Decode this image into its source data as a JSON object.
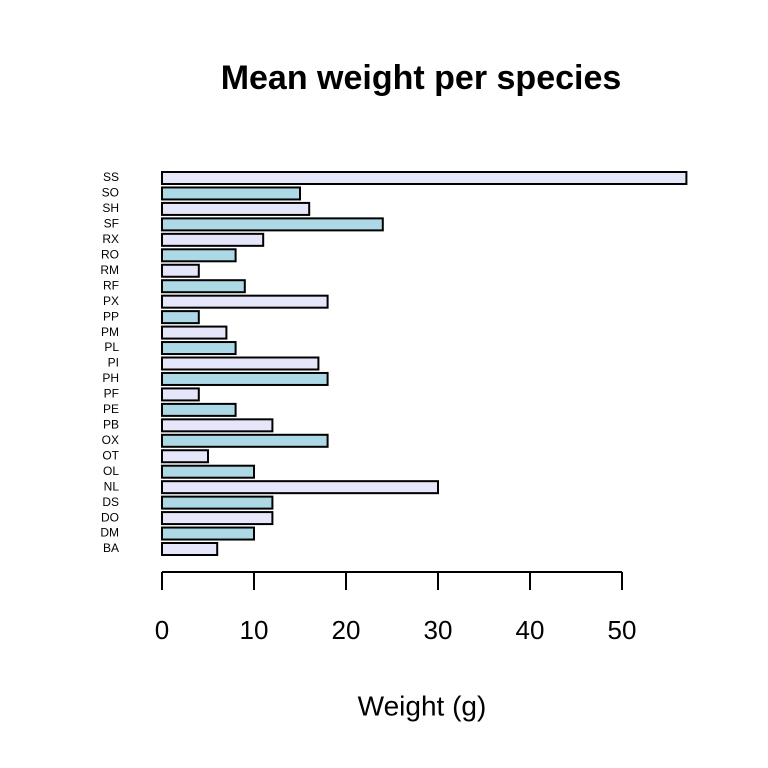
{
  "chart_data": {
    "type": "barh",
    "title": "Mean weight per species",
    "x_label": "Weight (g)",
    "categories": [
      "BA",
      "DM",
      "DO",
      "DS",
      "NL",
      "OL",
      "OT",
      "OX",
      "PB",
      "PE",
      "PF",
      "PH",
      "PI",
      "PL",
      "PM",
      "PP",
      "PX",
      "RF",
      "RM",
      "RO",
      "RX",
      "SF",
      "SH",
      "SO",
      "SS"
    ],
    "values": [
      6,
      10,
      12,
      12,
      30,
      10,
      5,
      18,
      12,
      8,
      4,
      18,
      17,
      8,
      7,
      4,
      18,
      9,
      4,
      8,
      11,
      24,
      16,
      15,
      57
    ],
    "colors": [
      "#e6e6fa",
      "#add8e6"
    ],
    "xlim": [
      0,
      57
    ],
    "xticks": [
      0,
      10,
      20,
      30,
      40,
      50
    ]
  }
}
